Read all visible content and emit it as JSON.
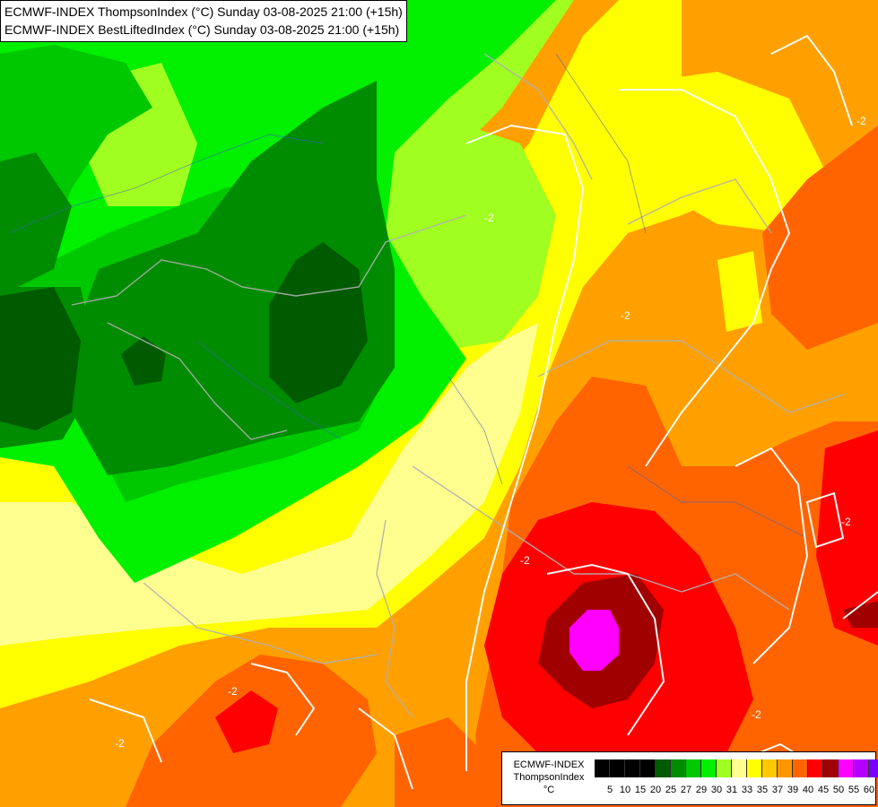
{
  "header": {
    "line1": "ECMWF-INDEX ThompsonIndex (°C) Sunday 03-08-2025 21:00 (+15h)",
    "line2": "ECMWF-INDEX BestLiftedIndex (°C) Sunday 03-08-2025 21:00 (+15h)"
  },
  "legend": {
    "model": "ECMWF-INDEX",
    "variable": "ThompsonIndex",
    "unit": "°C",
    "colors": [
      "#000000",
      "#000000",
      "#000000",
      "#000000",
      "#005a00",
      "#008c00",
      "#00c800",
      "#00f000",
      "#a0ff20",
      "#ffff90",
      "#ffff00",
      "#ffc800",
      "#ff9600",
      "#ff6400",
      "#ff0000",
      "#a00000",
      "#ff00ff",
      "#b400ff",
      "#7a00ff",
      "#5a00ff",
      "#0000ff"
    ],
    "ticks": [
      "5",
      "10",
      "15",
      "20",
      "25",
      "27",
      "29",
      "30",
      "31",
      "33",
      "35",
      "37",
      "39",
      "40",
      "45",
      "50",
      "55",
      "60"
    ]
  },
  "contour_labels": [
    "-2",
    "-2",
    "-2",
    "-2",
    "-2",
    "-2",
    "-2",
    "-2"
  ]
}
